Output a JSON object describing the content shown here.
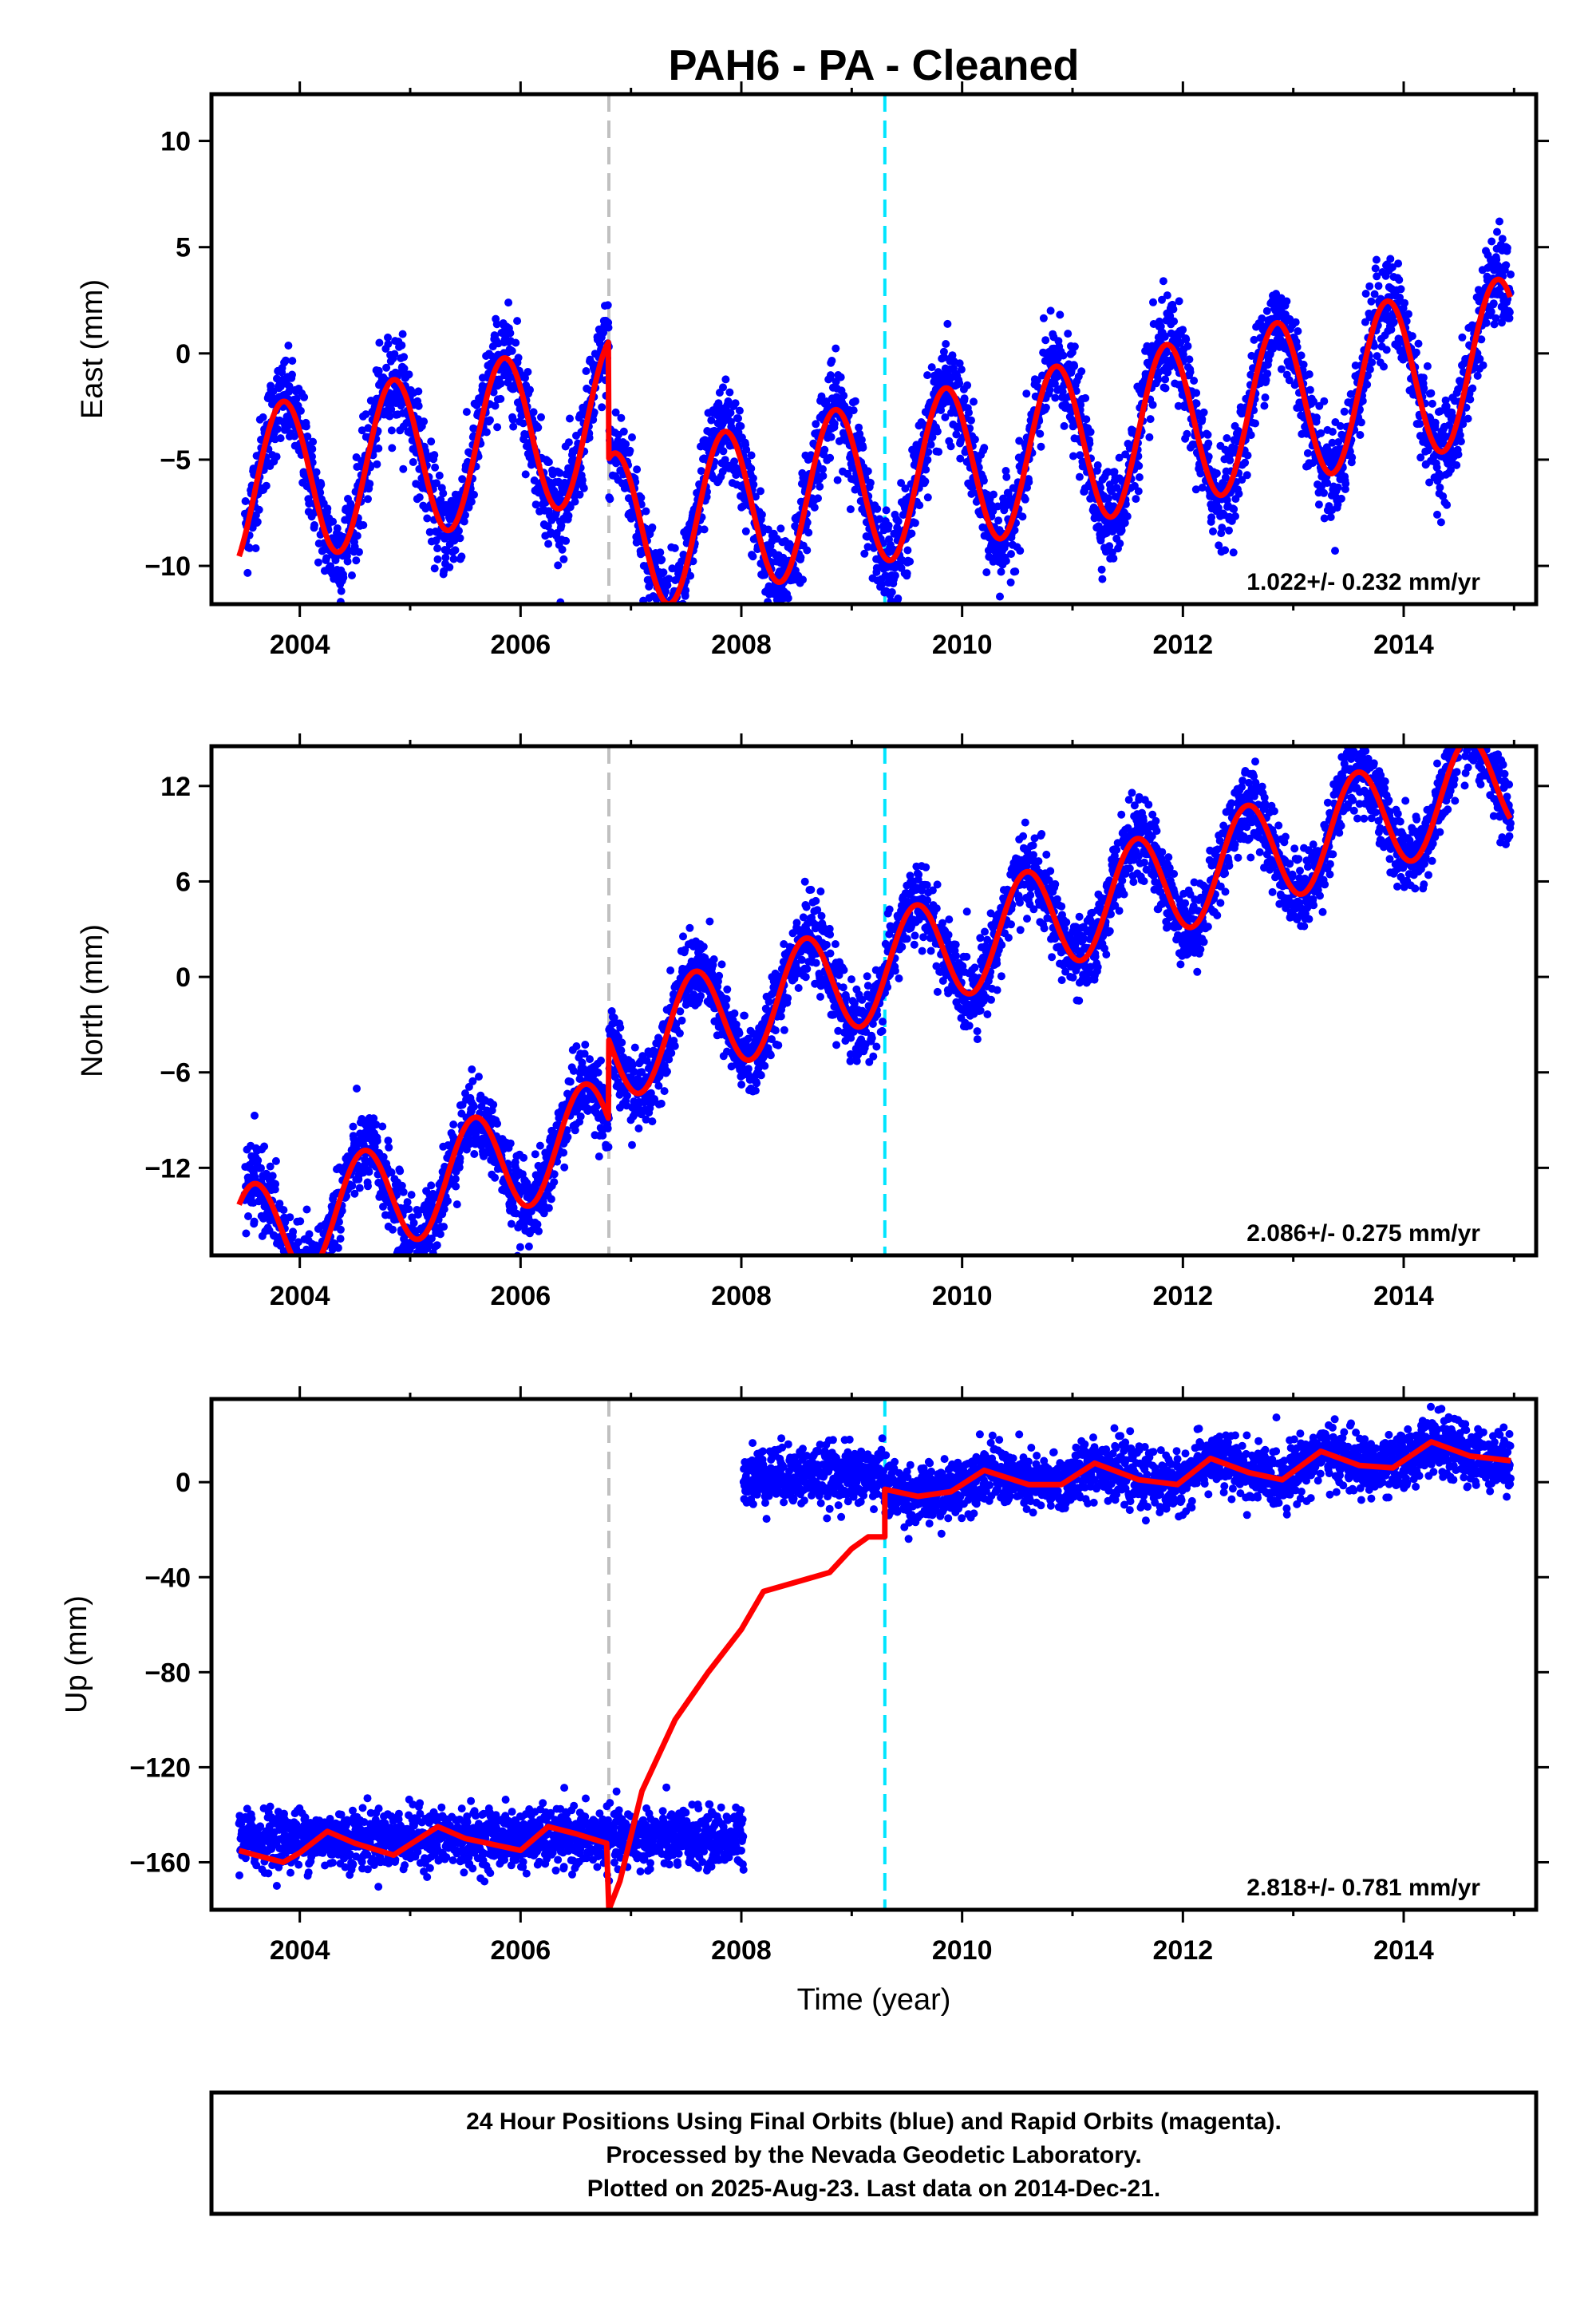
{
  "title": "PAH6  - PA - Cleaned",
  "xlabel": "Time (year)",
  "colors": {
    "data_points": "#0000ff",
    "model_line": "#ff0000",
    "equipment_change_line": "#c0c0c0",
    "other_change_line": "#00e5ff"
  },
  "footer": {
    "line1": "24 Hour Positions Using Final Orbits (blue) and Rapid Orbits (magenta).",
    "line2": "Processed by the Nevada Geodetic Laboratory.",
    "line3": "Plotted on 2025-Aug-23. Last data on 2014-Dec-21."
  },
  "chart_data": [
    {
      "type": "scatter",
      "ylabel": "East (mm)",
      "rate_label": "1.022+/- 0.232 mm/yr",
      "xlim": [
        2003.2,
        2015.2
      ],
      "ylim": [
        -11.8,
        12.2
      ],
      "x_ticks": [
        2004,
        2006,
        2008,
        2010,
        2012,
        2014
      ],
      "x_tick_labels": [
        "2004",
        "2006",
        "2008",
        "2010",
        "2012",
        "2014"
      ],
      "y_ticks": [
        -10,
        -5,
        0,
        5,
        10
      ],
      "y_tick_labels": [
        "−10",
        "−5",
        "0",
        "5",
        "10"
      ],
      "data_start": 2003.45,
      "data_end": 2014.97,
      "gaps": [],
      "steps": [
        {
          "x": 2006.8,
          "dy": -5.5
        }
      ],
      "rate": 1.022,
      "offset": -0.8,
      "t0": 2009.0,
      "annual_amplitude": 3.8,
      "annual_phase_year": 0.85,
      "noise_sd": 1.1,
      "vertical_lines": [
        {
          "x": 2006.8,
          "kind": "equipment"
        },
        {
          "x": 2009.3,
          "kind": "other"
        }
      ]
    },
    {
      "type": "scatter",
      "ylabel": "North (mm)",
      "rate_label": "2.086+/- 0.275 mm/yr",
      "xlim": [
        2003.2,
        2015.2
      ],
      "ylim": [
        -17.5,
        14.5
      ],
      "x_ticks": [
        2004,
        2006,
        2008,
        2010,
        2012,
        2014
      ],
      "x_tick_labels": [
        "2004",
        "2006",
        "2008",
        "2010",
        "2012",
        "2014"
      ],
      "y_ticks": [
        -12,
        -6,
        0,
        6,
        12
      ],
      "y_tick_labels": [
        "−12",
        "−6",
        "0",
        "6",
        "12"
      ],
      "data_start": 2003.45,
      "data_end": 2014.97,
      "gaps": [],
      "steps": [
        {
          "x": 2006.8,
          "dy": 5.0
        }
      ],
      "rate": 2.086,
      "offset": -5.0,
      "t0": 2009.0,
      "annual_amplitude": 3.3,
      "annual_phase_year": 0.58,
      "noise_sd": 1.2,
      "vertical_lines": [
        {
          "x": 2006.8,
          "kind": "equipment"
        },
        {
          "x": 2009.3,
          "kind": "other"
        }
      ]
    },
    {
      "type": "scatter",
      "ylabel": "Up (mm)",
      "rate_label": "2.818+/- 0.781 mm/yr",
      "xlim": [
        2003.2,
        2015.2
      ],
      "ylim": [
        -180,
        35
      ],
      "x_ticks": [
        2004,
        2006,
        2008,
        2010,
        2012,
        2014
      ],
      "x_tick_labels": [
        "2004",
        "2006",
        "2008",
        "2010",
        "2012",
        "2014"
      ],
      "y_ticks": [
        -160,
        -120,
        -80,
        -40,
        0
      ],
      "y_tick_labels": [
        "−160",
        "−120",
        "−80",
        "−40",
        "0"
      ],
      "data_segments": [
        {
          "start": 2003.45,
          "end": 2008.02,
          "level": -150,
          "noise_sd": 6
        },
        {
          "start": 2008.02,
          "end": 2014.97,
          "level": 3,
          "noise_sd": 6
        }
      ],
      "model_points": [
        [
          2003.45,
          -155
        ],
        [
          2003.6,
          -157
        ],
        [
          2003.85,
          -160
        ],
        [
          2004.0,
          -156
        ],
        [
          2004.25,
          -147
        ],
        [
          2004.5,
          -152
        ],
        [
          2004.85,
          -157
        ],
        [
          2005.25,
          -145
        ],
        [
          2005.5,
          -150
        ],
        [
          2006.0,
          -155
        ],
        [
          2006.25,
          -145
        ],
        [
          2006.5,
          -148
        ],
        [
          2006.78,
          -152
        ],
        [
          2006.8,
          -180
        ],
        [
          2006.9,
          -168
        ],
        [
          2007.1,
          -130
        ],
        [
          2007.4,
          -100
        ],
        [
          2007.7,
          -80
        ],
        [
          2008.0,
          -62
        ],
        [
          2008.2,
          -46
        ],
        [
          2008.5,
          -42
        ],
        [
          2008.8,
          -38
        ],
        [
          2009.0,
          -28
        ],
        [
          2009.15,
          -23
        ],
        [
          2009.3,
          -23
        ],
        [
          2009.3,
          -3
        ],
        [
          2009.6,
          -6
        ],
        [
          2009.9,
          -4
        ],
        [
          2010.2,
          5
        ],
        [
          2010.6,
          -1
        ],
        [
          2010.9,
          -1
        ],
        [
          2011.2,
          8
        ],
        [
          2011.6,
          1
        ],
        [
          2011.95,
          -1
        ],
        [
          2012.25,
          10
        ],
        [
          2012.6,
          4
        ],
        [
          2012.9,
          1
        ],
        [
          2013.25,
          13
        ],
        [
          2013.6,
          7
        ],
        [
          2013.9,
          6
        ],
        [
          2014.25,
          17
        ],
        [
          2014.6,
          11
        ],
        [
          2014.97,
          9
        ]
      ],
      "vertical_lines": [
        {
          "x": 2006.8,
          "kind": "equipment"
        },
        {
          "x": 2009.3,
          "kind": "other"
        }
      ]
    }
  ]
}
